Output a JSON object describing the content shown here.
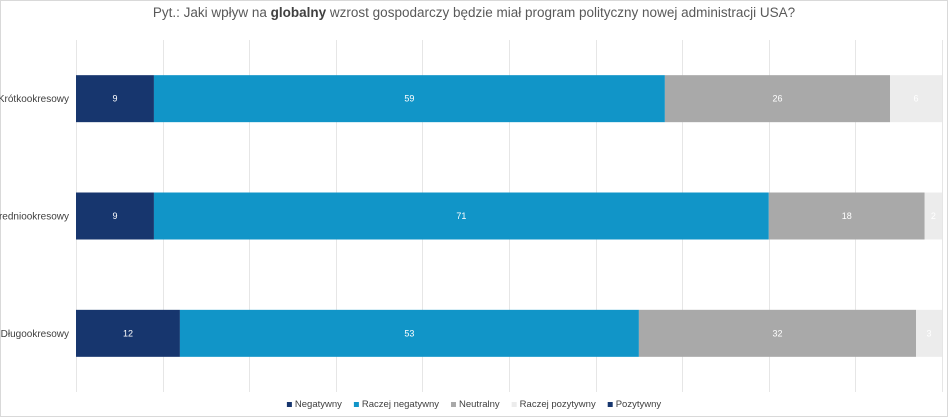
{
  "chart_data": {
    "type": "bar",
    "orientation": "horizontal",
    "stacked": true,
    "title_parts": [
      {
        "text": "Pyt.: Jaki wpływ na ",
        "bold": false
      },
      {
        "text": "globalny",
        "bold": true
      },
      {
        "text": " wzrost gospodarczy będzie miał program polityczny nowej administracji USA?",
        "bold": false
      }
    ],
    "categories": [
      "Krótkookresowy",
      "Średniookresowy",
      "Długookresowy"
    ],
    "series": [
      {
        "name": "Negatywny",
        "color": "#17366e",
        "label_color": "#ffffff",
        "values": [
          9,
          9,
          12
        ]
      },
      {
        "name": "Raczej negatywny",
        "color": "#1195c8",
        "label_color": "#ffffff",
        "values": [
          59,
          71,
          53
        ]
      },
      {
        "name": "Neutralny",
        "color": "#a9a9a9",
        "label_color": "#ffffff",
        "values": [
          26,
          18,
          32
        ]
      },
      {
        "name": "Raczej pozytywny",
        "color": "#ececec",
        "label_color": "#ffffff",
        "values": [
          6,
          2,
          3
        ]
      },
      {
        "name": "Pozytywny",
        "color": "#17366e",
        "label_color": "#ffffff",
        "values": [
          0,
          0,
          0
        ]
      }
    ],
    "xlim": [
      0,
      100
    ],
    "grid": true,
    "legend": "bottom"
  }
}
